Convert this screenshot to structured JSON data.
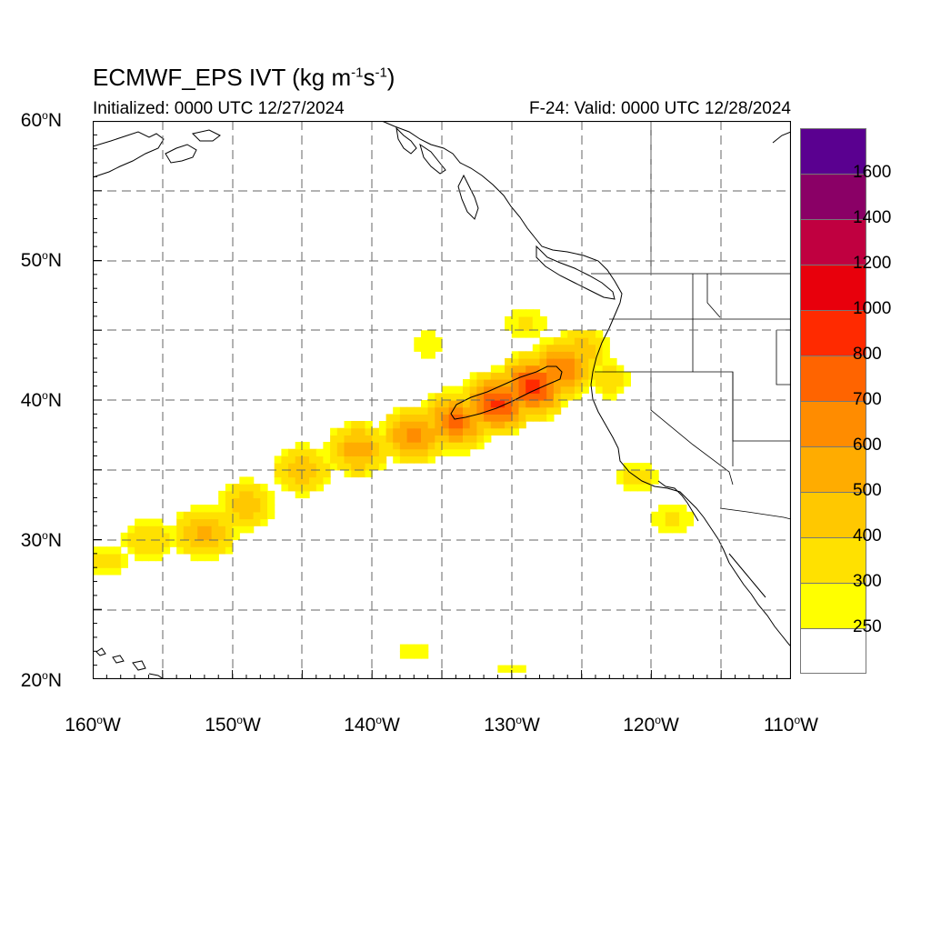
{
  "header": {
    "title_main": "ECMWF_EPS IVT (kg m",
    "title_exp1": "-1",
    "title_mid": "s",
    "title_exp2": "-1",
    "title_end": ")",
    "initialized": "Initialized: 0000 UTC 12/27/2024",
    "valid": "F-24: Valid: 0000 UTC 12/28/2024"
  },
  "axes": {
    "lat_labels": [
      {
        "value": "60",
        "deg": "o",
        "hemi": "N"
      },
      {
        "value": "50",
        "deg": "o",
        "hemi": "N"
      },
      {
        "value": "40",
        "deg": "o",
        "hemi": "N"
      },
      {
        "value": "30",
        "deg": "o",
        "hemi": "N"
      },
      {
        "value": "20",
        "deg": "o",
        "hemi": "N"
      }
    ],
    "lon_labels": [
      {
        "value": "160",
        "deg": "o",
        "hemi": "W"
      },
      {
        "value": "150",
        "deg": "o",
        "hemi": "W"
      },
      {
        "value": "140",
        "deg": "o",
        "hemi": "W"
      },
      {
        "value": "130",
        "deg": "o",
        "hemi": "W"
      },
      {
        "value": "120",
        "deg": "o",
        "hemi": "W"
      },
      {
        "value": "110",
        "deg": "o",
        "hemi": "W"
      }
    ],
    "lon_range": [
      -160,
      -110
    ],
    "lat_range": [
      20,
      60
    ]
  },
  "colorbar": {
    "labels": [
      "1600",
      "1400",
      "1200",
      "1000",
      "800",
      "700",
      "600",
      "500",
      "400",
      "300",
      "250"
    ],
    "levels": [
      250,
      300,
      400,
      500,
      600,
      700,
      800,
      1000,
      1200,
      1400,
      1600
    ],
    "colors": [
      "#ffffff",
      "#ffff00",
      "#ffe100",
      "#ffc800",
      "#ffac00",
      "#ff8c00",
      "#ff6400",
      "#ff2a00",
      "#e8000c",
      "#c00040",
      "#8a0066",
      "#5a0090"
    ]
  },
  "ivt_field": {
    "plume": [
      {
        "lon": -159,
        "lat": 28.5,
        "ivt": 330
      },
      {
        "lon": -156,
        "lat": 30.0,
        "ivt": 400
      },
      {
        "lon": -152,
        "lat": 30.5,
        "ivt": 540
      },
      {
        "lon": -149,
        "lat": 32.5,
        "ivt": 470
      },
      {
        "lon": -145,
        "lat": 35.0,
        "ivt": 480
      },
      {
        "lon": -141,
        "lat": 36.5,
        "ivt": 560
      },
      {
        "lon": -137,
        "lat": 37.5,
        "ivt": 640
      },
      {
        "lon": -134,
        "lat": 38.5,
        "ivt": 720
      },
      {
        "lon": -131,
        "lat": 39.8,
        "ivt": 830
      },
      {
        "lon": -128.5,
        "lat": 41.0,
        "ivt": 850
      },
      {
        "lon": -126.5,
        "lat": 42.2,
        "ivt": 700
      },
      {
        "lon": -125,
        "lat": 43.5,
        "ivt": 450
      },
      {
        "lon": -129,
        "lat": 45.5,
        "ivt": 320
      },
      {
        "lon": -136,
        "lat": 44.0,
        "ivt": 300
      },
      {
        "lon": -123,
        "lat": 41.5,
        "ivt": 350
      },
      {
        "lon": -121,
        "lat": 34.5,
        "ivt": 330
      },
      {
        "lon": -118.5,
        "lat": 31.5,
        "ivt": 320
      }
    ],
    "secondary": [
      {
        "lon": -137,
        "lat": 22.0,
        "ivt": 280
      },
      {
        "lon": -130,
        "lat": 20.6,
        "ivt": 270
      }
    ],
    "contour_level": 800
  }
}
